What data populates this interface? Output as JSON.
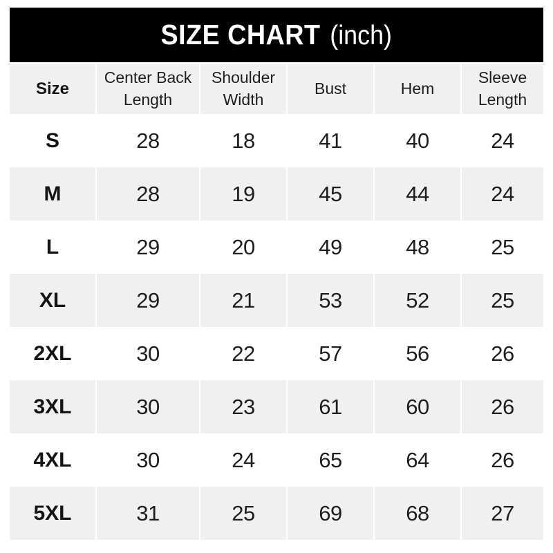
{
  "title": {
    "main": "SIZE CHART",
    "unit": "(inch)"
  },
  "table": {
    "columns": [
      "Size",
      "Center Back Length",
      "Shoulder Width",
      "Bust",
      "Hem",
      "Sleeve Length"
    ],
    "rows": [
      {
        "size": "S",
        "values": [
          28,
          18,
          41,
          40,
          24
        ]
      },
      {
        "size": "M",
        "values": [
          28,
          19,
          45,
          44,
          24
        ]
      },
      {
        "size": "L",
        "values": [
          29,
          20,
          49,
          48,
          25
        ]
      },
      {
        "size": "XL",
        "values": [
          29,
          21,
          53,
          52,
          25
        ]
      },
      {
        "size": "2XL",
        "values": [
          30,
          22,
          57,
          56,
          26
        ]
      },
      {
        "size": "3XL",
        "values": [
          30,
          23,
          61,
          60,
          26
        ]
      },
      {
        "size": "4XL",
        "values": [
          30,
          24,
          65,
          64,
          26
        ]
      },
      {
        "size": "5XL",
        "values": [
          31,
          25,
          69,
          68,
          27
        ]
      }
    ]
  },
  "colors": {
    "bar_bg": "#000000",
    "bar_text": "#ffffff",
    "row_alt_bg": "#f0f0f0",
    "row_bg": "#ffffff",
    "text": "#1e1e1e"
  },
  "chart_data": {
    "type": "table",
    "title": "SIZE CHART (inch)",
    "unit": "inch",
    "columns": [
      "Size",
      "Center Back Length",
      "Shoulder Width",
      "Bust",
      "Hem",
      "Sleeve Length"
    ],
    "rows": [
      [
        "S",
        28,
        18,
        41,
        40,
        24
      ],
      [
        "M",
        28,
        19,
        45,
        44,
        24
      ],
      [
        "L",
        29,
        20,
        49,
        48,
        25
      ],
      [
        "XL",
        29,
        21,
        53,
        52,
        25
      ],
      [
        "2XL",
        30,
        22,
        57,
        56,
        26
      ],
      [
        "3XL",
        30,
        23,
        61,
        60,
        26
      ],
      [
        "4XL",
        30,
        24,
        65,
        64,
        26
      ],
      [
        "5XL",
        31,
        25,
        69,
        68,
        27
      ]
    ],
    "layout": {
      "alternating_row_shading": true,
      "header_bar": "black",
      "grid": "column gaps only, no borders"
    }
  }
}
